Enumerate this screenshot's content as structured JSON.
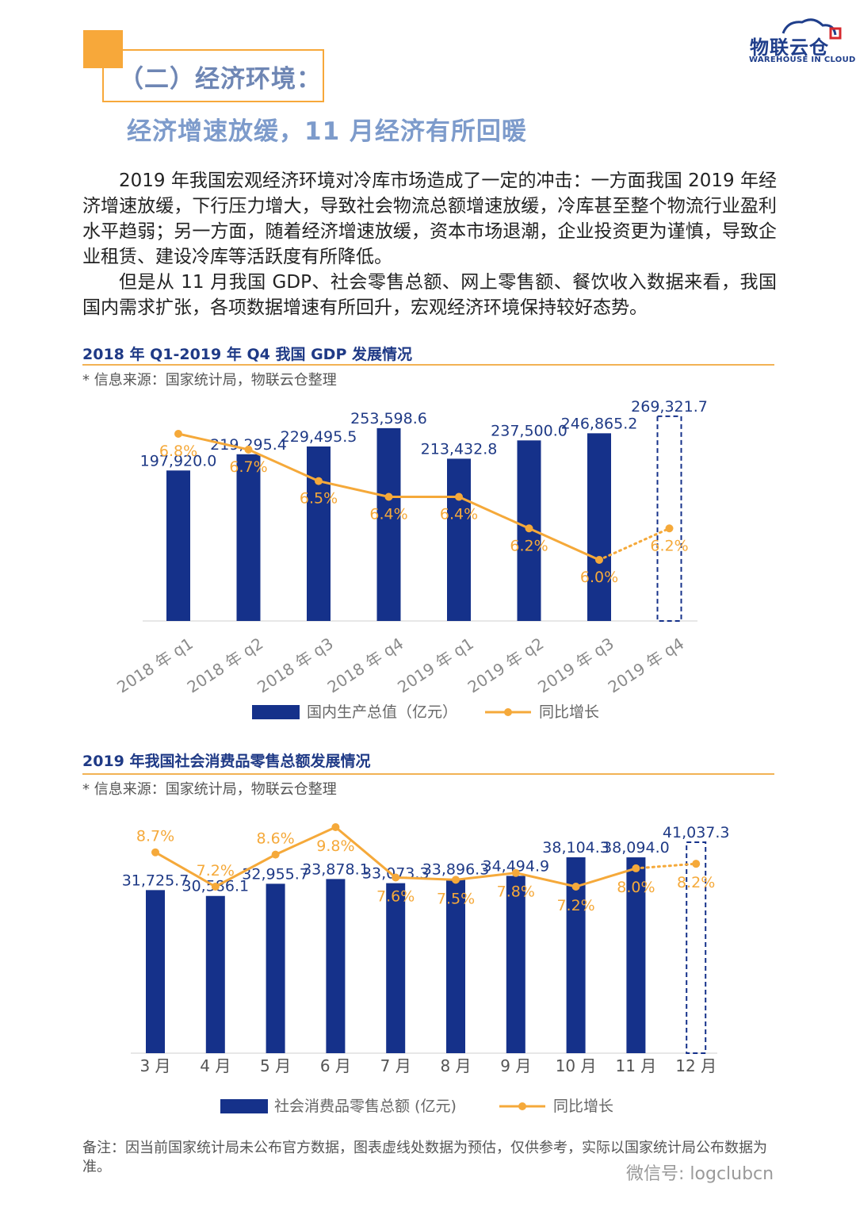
{
  "header": {
    "section_title": "（二）经济环境：",
    "subtitle": "经济增速放缓，11 月经济有所回暖"
  },
  "logo": {
    "cn": "物联云仓",
    "en": "WAREHOUSE IN CLOUD",
    "color": "#1F3E8B",
    "accent": "#D6282E"
  },
  "body": {
    "paragraph_1": "2019 年我国宏观经济环境对冷库市场造成了一定的冲击：一方面我国 2019 年经济增速放缓，下行压力增大，导致社会物流总额增速放缓，冷库甚至整个物流行业盈利水平趋弱；另一方面，随着经济增速放缓，资本市场退潮，企业投资更为谨慎，导致企业租赁、建设冷库等活跃度有所降低。",
    "paragraph_2": "但是从 11 月我国 GDP、社会零售总额、网上零售额、餐饮收入数据来看，我国国内需求扩张，各项数据增速有所回升，宏观经济环境保持较好态势。"
  },
  "charts": [
    {
      "heading": "2018 年 Q1-2019 年 Q4 我国 GDP 发展情况",
      "source": "* 信息来源：国家统计局，物联云仓整理"
    },
    {
      "heading": "2019 年我国社会消费品零售总额发展情况",
      "source": "* 信息来源：国家统计局，物联云仓整理"
    }
  ],
  "chart_data": [
    {
      "type": "bar",
      "title": "2018 年 Q1-2019 年 Q4 我国 GDP 发展情况",
      "categories": [
        "2018 年 q1",
        "2018 年 q2",
        "2018 年 q3",
        "2018 年 q4",
        "2019 年 q1",
        "2019 年 q2",
        "2019 年 q3",
        "2019 年 q4"
      ],
      "series": [
        {
          "name": "国内生产总值（亿元）",
          "type": "bar",
          "values": [
            197920.0,
            219295.4,
            229495.5,
            253598.6,
            213432.8,
            237500.0,
            246865.2,
            269321.7
          ],
          "labels": [
            "197,920.0",
            "219,295.4",
            "229,495.5",
            "253,598.6",
            "213,432.8",
            "237,500.0",
            "246,865.2",
            "269,321.7"
          ],
          "estimated_last": true,
          "color": "#15318A"
        },
        {
          "name": "同比增长",
          "type": "line",
          "values": [
            6.8,
            6.7,
            6.5,
            6.4,
            6.4,
            6.2,
            6.0,
            6.2
          ],
          "labels": [
            "6.8%",
            "6.7%",
            "6.5%",
            "6.4%",
            "6.4%",
            "6.2%",
            "6.0%",
            "6.2%"
          ],
          "estimated_last": true,
          "color": "#F5A93A"
        }
      ],
      "ylim_bar": [
        0,
        290000
      ],
      "ylim_line": [
        5.5,
        7.0
      ],
      "legend": "bottom"
    },
    {
      "type": "bar",
      "title": "2019 年我国社会消费品零售总额发展情况",
      "categories": [
        "3 月",
        "4 月",
        "5 月",
        "6 月",
        "7 月",
        "8 月",
        "9 月",
        "10 月",
        "11 月",
        "12 月"
      ],
      "series": [
        {
          "name": "社会消费品零售总额 (亿元)",
          "type": "bar",
          "values": [
            31725.7,
            30586.1,
            32955.7,
            33878.1,
            33073.3,
            33896.3,
            34494.9,
            38104.3,
            38094.0,
            41037.3
          ],
          "labels": [
            "31,725.7",
            "30,586.1",
            "32,955.7",
            "33,878.1",
            "33,073.3",
            "33,896.3",
            "34,494.9",
            "38,104.3",
            "38,094.0",
            "41,037.3"
          ],
          "estimated_last": true,
          "color": "#15318A"
        },
        {
          "name": "同比增长",
          "type": "line",
          "values": [
            8.7,
            7.2,
            8.6,
            9.8,
            7.6,
            7.5,
            7.8,
            7.2,
            8.0,
            8.2
          ],
          "labels": [
            "8.7%",
            "7.2%",
            "8.6%",
            "9.8%",
            "7.6%",
            "7.5%",
            "7.8%",
            "7.2%",
            "8.0%",
            "8.2%"
          ],
          "estimated_last": true,
          "color": "#F5A93A"
        }
      ],
      "legend": "bottom"
    }
  ],
  "footnote": "备注：因当前国家统计局未公布官方数据，图表虚线处数据为预估，仅供参考，实际以国家统计局公布数据为准。",
  "watermark": "微信号: logclubcn",
  "colors": {
    "accent_orange": "#F7A83A",
    "navy": "#15318A",
    "heading_blue": "#6E86B4"
  }
}
